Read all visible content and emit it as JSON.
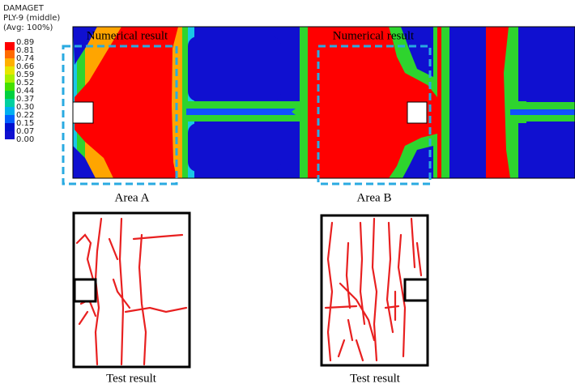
{
  "legend": {
    "title": "DAMAGET",
    "subtitle": "PLY-9 (middle)",
    "note": "(Avg: 100%)",
    "levels": [
      "0.89",
      "0.81",
      "0.74",
      "0.66",
      "0.59",
      "0.52",
      "0.44",
      "0.37",
      "0.30",
      "0.22",
      "0.15",
      "0.07",
      "0.00"
    ]
  },
  "panels": [
    {
      "numerical_label": "Numerical result",
      "area_label": "Area A",
      "test_label": "Test result"
    },
    {
      "numerical_label": "Numerical result",
      "area_label": "Area B",
      "test_label": "Test result"
    }
  ]
}
